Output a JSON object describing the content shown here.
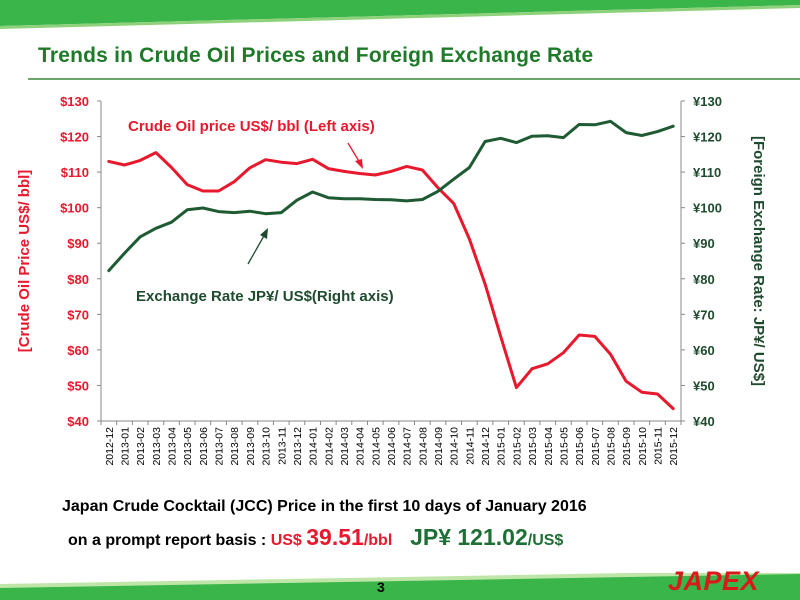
{
  "title": "Trends in Crude Oil Prices and Foreign Exchange Rate",
  "info": {
    "line1": "Japan Crude Cocktail (JCC) Price in the first 10 days of January 2016",
    "line2_prefix": "on a prompt report basis : ",
    "usd_label": "US$ ",
    "usd_value": "39.51",
    "usd_unit": "/bbl",
    "jpy_label": "JP¥ ",
    "jpy_value": "121.02",
    "jpy_unit": "/US$"
  },
  "footer": {
    "page_number": "3",
    "logo": "JAPEX"
  },
  "colors": {
    "oil": "#e8182d",
    "fx": "#1e5a32",
    "title": "#1e7a28",
    "bar": "#39b54a"
  },
  "chart_data": {
    "type": "line",
    "x": [
      "2012-12",
      "2013-01",
      "2013-02",
      "2013-03",
      "2013-04",
      "2013-05",
      "2013-06",
      "2013-07",
      "2013-08",
      "2013-09",
      "2013-10",
      "2013-11",
      "2013-12",
      "2014-01",
      "2014-02",
      "2014-03",
      "2014-04",
      "2014-05",
      "2014-06",
      "2014-07",
      "2014-08",
      "2014-09",
      "2014-10",
      "2014-11",
      "2014-12",
      "2015-01",
      "2015-02",
      "2015-03",
      "2015-04",
      "2015-05",
      "2015-06",
      "2015-07",
      "2015-08",
      "2015-09",
      "2015-10",
      "2015-11",
      "2015-12"
    ],
    "series": [
      {
        "name": "Crude Oil price US$/ bbl (Left axis)",
        "axis": "left",
        "color": "#e8182d",
        "values": [
          113,
          112,
          113.3,
          115.5,
          111.3,
          106.5,
          104.7,
          104.7,
          107.3,
          111.2,
          113.5,
          112.8,
          112.4,
          113.6,
          111,
          110.2,
          109.6,
          109.2,
          110.2,
          111.6,
          110.6,
          105.6,
          101.2,
          91.2,
          78.5,
          63.8,
          49.4,
          54.7,
          56.1,
          59.2,
          64.2,
          63.8,
          58.8,
          51.2,
          48.1,
          47.6,
          43.5
        ]
      },
      {
        "name": "Exchange Rate JP¥/ US$(Right axis)",
        "axis": "right",
        "color": "#1e5a32",
        "values": [
          82.3,
          87.2,
          91.8,
          94.2,
          95.9,
          99.4,
          99.9,
          98.9,
          98.6,
          99,
          98.3,
          98.6,
          102.1,
          104.4,
          102.8,
          102.5,
          102.5,
          102.3,
          102.2,
          101.9,
          102.3,
          104.6,
          108,
          111.3,
          118.6,
          119.5,
          118.3,
          120.1,
          120.2,
          119.7,
          123.4,
          123.3,
          124.3,
          121.1,
          120.3,
          121.4,
          122.9
        ]
      }
    ],
    "left_axis": {
      "label": "[Crude Oil Price US$/ bbl]",
      "ylim": [
        40,
        130
      ],
      "ticks": [
        "$130",
        "$120",
        "$110",
        "$100",
        "$90",
        "$80",
        "$70",
        "$60",
        "$50",
        "$40"
      ]
    },
    "right_axis": {
      "label": "[Foreign Exchange Rate: JP¥/ US$]",
      "ylim": [
        40,
        130
      ],
      "ticks": [
        "¥130",
        "¥120",
        "¥110",
        "¥100",
        "¥90",
        "¥80",
        "¥70",
        "¥60",
        "¥50",
        "¥40"
      ]
    },
    "annotations": {
      "oil": "Crude Oil price US$/ bbl (Left axis)",
      "fx": "Exchange Rate JP¥/ US$(Right axis)"
    },
    "grid": false
  }
}
